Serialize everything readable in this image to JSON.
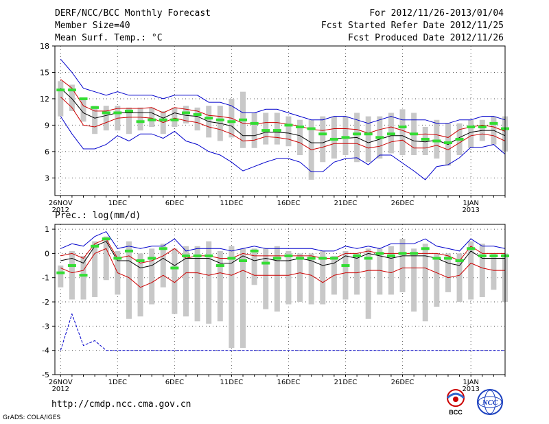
{
  "header": {
    "title": "DERF/NCC/BCC Monthly Forecast",
    "member_size": "Member Size=40",
    "variable": "Mean Surf. Temp.: °C",
    "forecast_period": "For 2012/11/26-2013/01/04",
    "started_refer": "Fcst Started Refer Date 2012/11/25",
    "produced": "Fcst Produced Date 2012/11/26"
  },
  "footer": {
    "url": "http://cmdp.ncc.cma.gov.cn",
    "grads": "GrADS: COLA/IGES"
  },
  "logos": {
    "bcc": "BCC",
    "ncc": "NCC"
  },
  "colors": {
    "grid": "#555555",
    "envelope": "#0000cc",
    "spread": "#cc0000",
    "mean": "#000000",
    "bar": "#c8c8c8",
    "obs": "#33dd33"
  },
  "chart_data": [
    {
      "type": "line",
      "title": "Mean Surf. Temp.: °C",
      "ylim": [
        1,
        18
      ],
      "yticks": [
        3,
        6,
        9,
        12,
        15,
        18
      ],
      "xlim": [
        0.5,
        40
      ],
      "xtick_labels": [
        {
          "day": 1,
          "line1": "26NOV",
          "line2": "2012"
        },
        {
          "day": 6,
          "line1": "1DEC",
          "line2": ""
        },
        {
          "day": 11,
          "line1": "6DEC",
          "line2": ""
        },
        {
          "day": 16,
          "line1": "11DEC",
          "line2": ""
        },
        {
          "day": 21,
          "line1": "16DEC",
          "line2": ""
        },
        {
          "day": 26,
          "line1": "21DEC",
          "line2": ""
        },
        {
          "day": 31,
          "line1": "26DEC",
          "line2": ""
        },
        {
          "day": 37,
          "line1": "1JAN",
          "line2": "2013"
        }
      ],
      "days": [
        1,
        2,
        3,
        4,
        5,
        6,
        7,
        8,
        9,
        10,
        11,
        12,
        13,
        14,
        15,
        16,
        17,
        18,
        19,
        20,
        21,
        22,
        23,
        24,
        25,
        26,
        27,
        28,
        29,
        30,
        31,
        32,
        33,
        34,
        35,
        36,
        37,
        38,
        39,
        40
      ],
      "series": [
        {
          "name": "max",
          "color": "#0000cc",
          "values": [
            16.5,
            15,
            13.2,
            12.8,
            12.4,
            12.8,
            12.4,
            12.4,
            12.4,
            12.0,
            12.4,
            12.4,
            12.4,
            11.6,
            11.6,
            11.2,
            10.4,
            10.4,
            10.8,
            10.8,
            10.4,
            10.0,
            9.6,
            9.6,
            10.0,
            10.0,
            9.6,
            9.2,
            9.6,
            10.0,
            9.6,
            9.6,
            9.6,
            9.2,
            9.2,
            9.6,
            9.6,
            10.0,
            10.0,
            9.6
          ]
        },
        {
          "name": "upper",
          "color": "#cc0000",
          "values": [
            14.2,
            13.2,
            11.2,
            10.6,
            10.6,
            10.9,
            10.9,
            10.9,
            11.0,
            10.4,
            11.0,
            10.8,
            10.6,
            10.1,
            10.0,
            9.8,
            9.2,
            9.1,
            9.3,
            9.3,
            9.1,
            8.9,
            8.5,
            8.4,
            8.6,
            8.6,
            8.5,
            8.1,
            8.5,
            8.8,
            8.4,
            7.9,
            8.0,
            7.9,
            7.6,
            8.5,
            8.8,
            9.0,
            8.8,
            8.3
          ]
        },
        {
          "name": "mean",
          "color": "#000000",
          "values": [
            13.2,
            12.0,
            10.4,
            9.8,
            10.1,
            10.4,
            10.4,
            10.4,
            10.4,
            9.8,
            10.4,
            10.1,
            10.0,
            9.4,
            9.2,
            8.9,
            7.8,
            7.8,
            8.2,
            8.2,
            8.1,
            7.8,
            7.0,
            7.0,
            7.5,
            7.5,
            7.6,
            7.0,
            7.4,
            7.8,
            7.8,
            7.2,
            7.1,
            7.3,
            6.8,
            7.6,
            8.2,
            8.4,
            8.4,
            7.8
          ]
        },
        {
          "name": "lower",
          "color": "#cc0000",
          "values": [
            12.2,
            11.0,
            9.0,
            8.8,
            9.3,
            9.8,
            9.9,
            9.9,
            9.8,
            9.3,
            9.8,
            9.5,
            9.3,
            8.8,
            8.5,
            8.0,
            7.2,
            7.3,
            7.7,
            7.6,
            7.4,
            7.0,
            6.2,
            6.5,
            6.9,
            6.9,
            6.9,
            6.4,
            6.6,
            7.1,
            7.3,
            6.4,
            6.4,
            6.7,
            6.2,
            7.0,
            7.8,
            8.0,
            7.8,
            7.2
          ]
        },
        {
          "name": "min",
          "color": "#0000cc",
          "values": [
            10.0,
            8.0,
            6.3,
            6.3,
            6.8,
            7.8,
            7.2,
            8.0,
            8.0,
            7.5,
            8.3,
            7.2,
            6.8,
            6.0,
            5.6,
            4.8,
            3.8,
            4.3,
            4.8,
            5.2,
            5.2,
            4.8,
            3.7,
            3.7,
            4.8,
            5.2,
            5.3,
            4.5,
            5.6,
            5.6,
            4.7,
            3.8,
            2.8,
            4.3,
            4.5,
            5.3,
            6.5,
            6.5,
            6.8,
            5.7
          ]
        }
      ],
      "bars": {
        "low": [
          10.0,
          10.6,
          9.4,
          8.0,
          8.4,
          8.4,
          8.0,
          8.4,
          8.8,
          8.0,
          8.8,
          9.2,
          8.4,
          7.6,
          7.2,
          7.6,
          6.4,
          6.4,
          6.8,
          6.8,
          6.6,
          5.6,
          2.8,
          4.8,
          5.2,
          5.6,
          4.8,
          4.8,
          5.2,
          5.8,
          5.6,
          5.6,
          5.6,
          5.2,
          4.4,
          5.6,
          6.4,
          7.2,
          6.8,
          6.0
        ],
        "high": [
          14.0,
          13.6,
          12.0,
          11.2,
          11.2,
          11.2,
          11.0,
          11.0,
          11.0,
          10.6,
          11.0,
          11.2,
          11.0,
          11.2,
          11.2,
          12.0,
          12.8,
          10.4,
          10.4,
          10.4,
          10.0,
          9.6,
          9.6,
          10.0,
          10.0,
          10.0,
          10.4,
          10.0,
          10.0,
          10.4,
          10.8,
          10.4,
          8.8,
          9.6,
          9.2,
          9.2,
          9.6,
          9.6,
          10.0,
          10.0
        ]
      },
      "observed": [
        13.0,
        13.0,
        12.0,
        11.0,
        10.4,
        10.4,
        10.6,
        9.4,
        9.6,
        9.6,
        9.6,
        10.4,
        10.2,
        9.8,
        9.6,
        9.4,
        9.6,
        9.2,
        8.4,
        8.4,
        9.0,
        8.8,
        8.6,
        8.0,
        7.4,
        7.6,
        8.0,
        8.0,
        7.6,
        8.0,
        8.8,
        8.0,
        7.4,
        7.2,
        7.0,
        7.4,
        8.8,
        8.8,
        9.2,
        8.6
      ]
    },
    {
      "type": "line",
      "title": "Prec.: log(mm/d)",
      "ylim": [
        -5,
        1.2
      ],
      "yticks": [
        -5,
        -4,
        -3,
        -2,
        -1,
        0,
        1
      ],
      "xlim": [
        0.5,
        40
      ],
      "xtick_labels": [
        {
          "day": 1,
          "line1": "26NOV",
          "line2": "2012"
        },
        {
          "day": 6,
          "line1": "1DEC",
          "line2": ""
        },
        {
          "day": 11,
          "line1": "6DEC",
          "line2": ""
        },
        {
          "day": 16,
          "line1": "11DEC",
          "line2": ""
        },
        {
          "day": 21,
          "line1": "16DEC",
          "line2": ""
        },
        {
          "day": 26,
          "line1": "21DEC",
          "line2": ""
        },
        {
          "day": 31,
          "line1": "26DEC",
          "line2": ""
        },
        {
          "day": 37,
          "line1": "1JAN",
          "line2": "2013"
        }
      ],
      "days": [
        1,
        2,
        3,
        4,
        5,
        6,
        7,
        8,
        9,
        10,
        11,
        12,
        13,
        14,
        15,
        16,
        17,
        18,
        19,
        20,
        21,
        22,
        23,
        24,
        25,
        26,
        27,
        28,
        29,
        30,
        31,
        32,
        33,
        34,
        35,
        36,
        37,
        38,
        39,
        40
      ],
      "series": [
        {
          "name": "max",
          "color": "#0000cc",
          "values": [
            0.2,
            0.4,
            0.3,
            0.7,
            0.9,
            0.2,
            0.3,
            0.2,
            0.3,
            0.3,
            0.6,
            0.1,
            0.2,
            0.2,
            0.2,
            0.1,
            0.2,
            0.3,
            0.2,
            0.2,
            0.2,
            0.2,
            0.2,
            0.1,
            0.1,
            0.3,
            0.2,
            0.3,
            0.2,
            0.4,
            0.4,
            0.4,
            0.6,
            0.3,
            0.2,
            0.1,
            0.6,
            0.3,
            0.3,
            0.2
          ]
        },
        {
          "name": "upper",
          "color": "#cc0000",
          "values": [
            -0.1,
            0.0,
            -0.2,
            0.4,
            0.6,
            -0.2,
            -0.1,
            -0.4,
            -0.3,
            -0.1,
            0.2,
            -0.2,
            -0.1,
            -0.1,
            -0.2,
            -0.2,
            0.0,
            -0.1,
            -0.1,
            -0.1,
            -0.1,
            -0.1,
            -0.1,
            -0.2,
            -0.2,
            0.0,
            0.0,
            0.1,
            0.0,
            0.0,
            0.0,
            0.0,
            0.0,
            0.0,
            -0.1,
            -0.3,
            0.3,
            0.0,
            0.0,
            0.0
          ]
        },
        {
          "name": "mean",
          "color": "#000000",
          "values": [
            -0.3,
            -0.2,
            -0.4,
            0.3,
            0.5,
            -0.3,
            -0.3,
            -0.6,
            -0.5,
            -0.2,
            -0.5,
            -0.2,
            -0.2,
            -0.2,
            -0.4,
            -0.4,
            -0.1,
            -0.3,
            -0.2,
            -0.3,
            -0.3,
            -0.2,
            -0.3,
            -0.5,
            -0.4,
            -0.1,
            -0.2,
            0.0,
            -0.1,
            -0.2,
            -0.1,
            -0.1,
            -0.1,
            -0.2,
            -0.4,
            -0.5,
            0.1,
            -0.2,
            -0.2,
            -0.2
          ]
        },
        {
          "name": "lower",
          "color": "#cc0000",
          "values": [
            -0.6,
            -0.8,
            -0.7,
            0.0,
            0.2,
            -0.8,
            -1.0,
            -1.4,
            -1.2,
            -0.9,
            -1.2,
            -0.8,
            -0.8,
            -0.9,
            -0.8,
            -0.9,
            -0.7,
            -0.9,
            -0.9,
            -0.9,
            -0.9,
            -0.8,
            -0.9,
            -1.2,
            -0.9,
            -0.8,
            -0.8,
            -0.7,
            -0.7,
            -0.8,
            -0.6,
            -0.6,
            -0.6,
            -0.8,
            -1.0,
            -0.9,
            -0.4,
            -0.6,
            -0.7,
            -0.7
          ]
        },
        {
          "name": "min",
          "color": "#0000cc",
          "values": [
            -4.0,
            -2.5,
            -3.8,
            -3.6,
            -4.0,
            -4.0,
            -4.0,
            -4.0,
            -4.0,
            -4.0,
            -4.0,
            -4.0,
            -4.0,
            -4.0,
            -4.0,
            -4.0,
            -4.0,
            -4.0,
            -4.0,
            -4.0,
            -4.0,
            -4.0,
            -4.0,
            -4.0,
            -4.0,
            -4.0,
            -4.0,
            -4.0,
            -4.0,
            -4.0,
            -4.0,
            -4.0,
            -4.0,
            -4.0,
            -4.0,
            -4.0,
            -4.0,
            -4.0,
            -4.0,
            -4.0
          ]
        }
      ],
      "bars": {
        "low": [
          -1.4,
          -1.9,
          -1.9,
          -1.8,
          -1.1,
          -1.7,
          -2.7,
          -2.6,
          -2.1,
          -1.4,
          -2.5,
          -2.6,
          -2.8,
          -2.9,
          -2.8,
          -3.9,
          -3.9,
          -1.3,
          -2.3,
          -2.4,
          -2.1,
          -2.0,
          -2.1,
          -2.1,
          -1.7,
          -1.9,
          -1.7,
          -2.7,
          -1.7,
          -1.7,
          -1.6,
          -2.4,
          -2.8,
          -2.2,
          -1.6,
          -2.0,
          -1.9,
          -1.8,
          -1.5,
          -2.0
        ],
        "high": [
          -0.5,
          0.1,
          -0.1,
          0.5,
          0.7,
          0.1,
          0.5,
          0.0,
          0.2,
          0.4,
          0.2,
          0.3,
          0.3,
          0.5,
          0.1,
          0.3,
          0.2,
          0.2,
          0.2,
          0.3,
          0.1,
          0.0,
          0.0,
          0.1,
          -0.1,
          0.1,
          0.0,
          0.2,
          0.2,
          0.3,
          0.6,
          0.2,
          0.4,
          0.0,
          0.0,
          0.0,
          0.5,
          0.4,
          0.0,
          0.0
        ]
      },
      "observed": [
        -0.8,
        -0.5,
        -0.9,
        0.3,
        0.6,
        -0.2,
        0.1,
        -0.3,
        -0.2,
        0.2,
        -0.6,
        -0.1,
        -0.1,
        -0.1,
        -0.5,
        -0.2,
        -0.3,
        0.1,
        -0.4,
        -0.2,
        -0.1,
        -0.2,
        -0.2,
        -0.2,
        -0.2,
        -0.5,
        -0.1,
        -0.2,
        0.0,
        -0.1,
        0.0,
        0.0,
        0.2,
        -0.2,
        -0.2,
        -0.3,
        0.2,
        -0.1,
        -0.1,
        -0.1
      ]
    }
  ]
}
